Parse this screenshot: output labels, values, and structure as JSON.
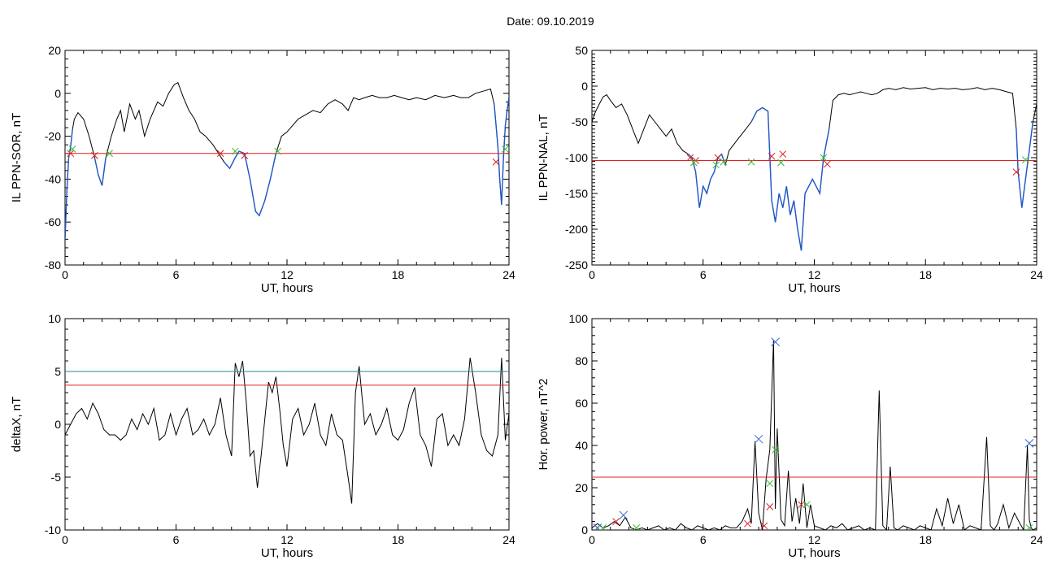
{
  "figure": {
    "date_label": "Date:",
    "date_value": "09.10.2019"
  },
  "colors": {
    "trace": "#000000",
    "substorm": "#1f57c9",
    "threshold": "#e02020",
    "threshold2": "#1a8f8f",
    "onset_marker": "#e02020",
    "end_marker": "#33bb33",
    "power_marker": "#2f6ad8"
  },
  "chart_data": [
    {
      "type": "line",
      "xlabel": "UT, hours",
      "ylabel": "IL PPN-SOR, nT",
      "xlim": [
        0,
        24
      ],
      "ylim": [
        -80,
        20
      ],
      "xticks": [
        0,
        6,
        12,
        18,
        24
      ],
      "yticks": [
        -80,
        -60,
        -40,
        -20,
        0,
        20
      ],
      "yminor": 5,
      "grid": false,
      "threshold": -28,
      "x": [
        0,
        0.1,
        0.2,
        0.3,
        0.4,
        0.5,
        0.7,
        1.0,
        1.3,
        1.6,
        1.8,
        2.0,
        2.2,
        2.5,
        2.8,
        3.0,
        3.2,
        3.5,
        3.8,
        4.0,
        4.3,
        4.6,
        5.0,
        5.3,
        5.6,
        5.9,
        6.1,
        6.4,
        6.7,
        7.0,
        7.3,
        7.6,
        8.0,
        8.3,
        8.6,
        8.9,
        9.2,
        9.4,
        9.7,
        10.0,
        10.3,
        10.5,
        10.8,
        11.1,
        11.4,
        11.7,
        12.0,
        12.3,
        12.6,
        13.0,
        13.4,
        13.8,
        14.2,
        14.6,
        15.0,
        15.3,
        15.6,
        15.9,
        16.2,
        16.6,
        17.0,
        17.4,
        17.8,
        18.2,
        18.6,
        19.0,
        19.5,
        20.0,
        20.5,
        21.0,
        21.4,
        21.8,
        22.2,
        22.6,
        23.0,
        23.2,
        23.4,
        23.5,
        23.6,
        23.7,
        23.8,
        23.9,
        24.0
      ],
      "y": [
        -68,
        -45,
        -30,
        -25,
        -17,
        -12,
        -9,
        -12,
        -20,
        -30,
        -38,
        -43,
        -30,
        -20,
        -12,
        -8,
        -18,
        -5,
        -12,
        -8,
        -20,
        -12,
        -4,
        -6,
        0,
        4,
        5,
        -2,
        -8,
        -12,
        -18,
        -20,
        -24,
        -28,
        -32,
        -35,
        -30,
        -27,
        -28,
        -40,
        -55,
        -57,
        -50,
        -40,
        -28,
        -20,
        -18,
        -15,
        -12,
        -10,
        -8,
        -9,
        -5,
        -3,
        -5,
        -8,
        -2,
        -3,
        -2,
        -1,
        -2,
        -2,
        -1,
        -2,
        -3,
        -2,
        -3,
        -1,
        -2,
        -1,
        -2,
        -2,
        0,
        1,
        2,
        -5,
        -25,
        -40,
        -52,
        -30,
        -15,
        -8,
        -2
      ],
      "substorm_intervals": [
        [
          0.0,
          0.4
        ],
        [
          1.5,
          2.4
        ],
        [
          8.4,
          11.5
        ],
        [
          23.2,
          24.0
        ]
      ],
      "onset_markers": {
        "x": [
          0.3,
          1.6,
          8.4,
          9.7,
          23.3
        ],
        "y": [
          -28,
          -29,
          -28,
          -29,
          -32
        ]
      },
      "end_markers": {
        "x": [
          0.4,
          2.4,
          9.2,
          11.5,
          23.8
        ],
        "y": [
          -26,
          -28,
          -27,
          -27,
          -26
        ]
      }
    },
    {
      "type": "line",
      "xlabel": "UT, hours",
      "ylabel": "IL PPN-NAL, nT",
      "xlim": [
        0,
        24
      ],
      "ylim": [
        -250,
        50
      ],
      "xticks": [
        0,
        6,
        12,
        18,
        24
      ],
      "yticks": [
        -250,
        -200,
        -150,
        -100,
        -50,
        0,
        50
      ],
      "yminor": 10,
      "grid": false,
      "threshold": -104,
      "x": [
        0,
        0.2,
        0.4,
        0.6,
        0.8,
        1.0,
        1.3,
        1.6,
        1.9,
        2.2,
        2.5,
        2.8,
        3.1,
        3.4,
        3.7,
        4.0,
        4.3,
        4.6,
        4.9,
        5.2,
        5.4,
        5.6,
        5.8,
        6.0,
        6.2,
        6.4,
        6.6,
        6.8,
        7.0,
        7.2,
        7.4,
        7.7,
        8.0,
        8.3,
        8.6,
        8.9,
        9.2,
        9.5,
        9.7,
        9.9,
        10.1,
        10.3,
        10.5,
        10.7,
        10.9,
        11.1,
        11.3,
        11.5,
        11.7,
        11.9,
        12.1,
        12.3,
        12.5,
        12.8,
        13.0,
        13.3,
        13.6,
        13.9,
        14.2,
        14.5,
        14.8,
        15.1,
        15.4,
        15.7,
        16.0,
        16.4,
        16.8,
        17.2,
        17.6,
        18.0,
        18.4,
        18.8,
        19.2,
        19.6,
        20.0,
        20.4,
        20.8,
        21.2,
        21.6,
        22.0,
        22.4,
        22.7,
        22.9,
        23.0,
        23.2,
        23.4,
        23.6,
        23.8,
        24.0
      ],
      "y": [
        -50,
        -35,
        -25,
        -15,
        -12,
        -20,
        -30,
        -25,
        -40,
        -60,
        -80,
        -60,
        -40,
        -50,
        -60,
        -70,
        -60,
        -80,
        -90,
        -95,
        -100,
        -120,
        -170,
        -140,
        -150,
        -130,
        -120,
        -100,
        -95,
        -110,
        -90,
        -80,
        -70,
        -60,
        -50,
        -35,
        -30,
        -35,
        -160,
        -190,
        -150,
        -170,
        -140,
        -180,
        -160,
        -200,
        -230,
        -150,
        -140,
        -130,
        -140,
        -150,
        -100,
        -60,
        -20,
        -12,
        -10,
        -12,
        -10,
        -8,
        -10,
        -12,
        -10,
        -5,
        -3,
        -5,
        -2,
        -4,
        -3,
        -2,
        -5,
        -3,
        -4,
        -3,
        -5,
        -4,
        -2,
        -5,
        -3,
        -5,
        -8,
        -10,
        -60,
        -120,
        -170,
        -130,
        -90,
        -50,
        -25
      ],
      "substorm_intervals": [
        [
          5.2,
          7.3
        ],
        [
          8.6,
          10.3
        ],
        [
          10.3,
          12.8
        ],
        [
          22.9,
          23.8
        ]
      ],
      "onset_markers": {
        "x": [
          5.3,
          5.6,
          6.8,
          9.7,
          10.3,
          12.7,
          22.9
        ],
        "y": [
          -100,
          -104,
          -100,
          -98,
          -95,
          -109,
          -120
        ]
      },
      "end_markers": {
        "x": [
          5.5,
          6.7,
          7.1,
          8.6,
          10.2,
          12.5,
          23.4
        ],
        "y": [
          -107,
          -110,
          -106,
          -106,
          -107,
          -100,
          -103
        ]
      }
    },
    {
      "type": "line",
      "xlabel": "UT, hours",
      "ylabel": "deltaX, nT",
      "xlim": [
        0,
        24
      ],
      "ylim": [
        -10,
        10
      ],
      "xticks": [
        0,
        6,
        12,
        18,
        24
      ],
      "yticks": [
        -10,
        -5,
        0,
        5,
        10
      ],
      "yminor": 5,
      "grid": false,
      "threshold": 3.7,
      "threshold2": 5,
      "x": [
        0,
        0.3,
        0.6,
        0.9,
        1.2,
        1.5,
        1.8,
        2.1,
        2.4,
        2.7,
        3.0,
        3.3,
        3.6,
        3.9,
        4.2,
        4.5,
        4.8,
        5.1,
        5.4,
        5.7,
        6.0,
        6.3,
        6.6,
        6.9,
        7.2,
        7.5,
        7.8,
        8.1,
        8.4,
        8.7,
        9.0,
        9.2,
        9.4,
        9.6,
        9.8,
        10.0,
        10.2,
        10.4,
        10.6,
        10.8,
        11.0,
        11.2,
        11.4,
        11.6,
        11.8,
        12.0,
        12.3,
        12.6,
        12.9,
        13.2,
        13.5,
        13.8,
        14.1,
        14.4,
        14.7,
        15.0,
        15.3,
        15.5,
        15.7,
        15.9,
        16.2,
        16.5,
        16.8,
        17.1,
        17.4,
        17.7,
        18.0,
        18.3,
        18.6,
        18.9,
        19.2,
        19.5,
        19.8,
        20.1,
        20.4,
        20.7,
        21.0,
        21.3,
        21.6,
        21.9,
        22.2,
        22.5,
        22.8,
        23.1,
        23.4,
        23.6,
        23.8,
        24.0
      ],
      "y": [
        -1,
        0,
        1,
        1.5,
        0.5,
        2,
        1,
        -0.5,
        -1,
        -1,
        -1.5,
        -1,
        0.5,
        -0.5,
        1,
        0,
        1.5,
        -1.5,
        -1,
        1,
        -1,
        0.5,
        1.5,
        -1,
        -0.5,
        0.5,
        -1,
        0,
        2.5,
        -1,
        -3,
        5.8,
        4.5,
        6,
        2,
        -3,
        -2.5,
        -6,
        -3,
        0.5,
        4,
        3,
        4.5,
        1.5,
        -2,
        -4,
        0.5,
        1.5,
        -1,
        0,
        2,
        -1,
        -2,
        1,
        -1,
        -1.5,
        -5,
        -7.5,
        3,
        5.5,
        0,
        1,
        -1,
        0,
        1.5,
        -1,
        -1.5,
        -0.5,
        2,
        3.5,
        -1,
        -2,
        -4,
        0.5,
        1,
        -2,
        -1,
        -2,
        0.5,
        6.3,
        3,
        -1,
        -2.5,
        -3,
        -1,
        6.3,
        -1.5,
        1
      ],
      "substorm_intervals": [],
      "onset_markers": {
        "x": [],
        "y": []
      },
      "end_markers": {
        "x": [],
        "y": []
      }
    },
    {
      "type": "line",
      "xlabel": "UT, hours",
      "ylabel": "Hor. power, nT^2",
      "xlim": [
        0,
        24
      ],
      "ylim": [
        0,
        100
      ],
      "xticks": [
        0,
        6,
        12,
        18,
        24
      ],
      "yticks": [
        0,
        20,
        40,
        60,
        80,
        100
      ],
      "yminor": 5,
      "grid": false,
      "threshold": 25,
      "x": [
        0,
        0.3,
        0.6,
        0.9,
        1.2,
        1.5,
        1.8,
        2.1,
        2.4,
        2.7,
        3.0,
        3.3,
        3.6,
        3.9,
        4.2,
        4.5,
        4.8,
        5.1,
        5.4,
        5.7,
        6.0,
        6.3,
        6.6,
        6.9,
        7.2,
        7.5,
        7.8,
        8.1,
        8.4,
        8.6,
        8.8,
        9.0,
        9.2,
        9.4,
        9.6,
        9.8,
        9.9,
        10.0,
        10.2,
        10.4,
        10.6,
        10.8,
        11.0,
        11.2,
        11.4,
        11.6,
        11.8,
        12.0,
        12.3,
        12.6,
        12.9,
        13.2,
        13.5,
        13.8,
        14.1,
        14.4,
        14.7,
        15.0,
        15.3,
        15.5,
        15.7,
        15.9,
        16.1,
        16.3,
        16.5,
        16.8,
        17.1,
        17.4,
        17.7,
        18.0,
        18.3,
        18.6,
        18.9,
        19.2,
        19.5,
        19.8,
        20.1,
        20.4,
        20.7,
        21.0,
        21.3,
        21.5,
        21.7,
        21.9,
        22.2,
        22.5,
        22.8,
        23.1,
        23.3,
        23.5,
        23.6,
        23.7,
        23.8,
        24.0
      ],
      "y": [
        1,
        3,
        1,
        2,
        4,
        2,
        6,
        1,
        0,
        1,
        0,
        1,
        2,
        0,
        1,
        0,
        3,
        1,
        0,
        2,
        1,
        0,
        1,
        0,
        2,
        1,
        1,
        4,
        10,
        3,
        42,
        8,
        0,
        24,
        38,
        90,
        10,
        48,
        5,
        2,
        28,
        4,
        15,
        3,
        22,
        1,
        12,
        2,
        1,
        0,
        2,
        1,
        3,
        0,
        1,
        2,
        0,
        1,
        0,
        66,
        2,
        0,
        30,
        1,
        0,
        2,
        1,
        0,
        2,
        1,
        0,
        10,
        2,
        15,
        3,
        12,
        0,
        2,
        1,
        0,
        44,
        2,
        0,
        3,
        12,
        1,
        8,
        3,
        0,
        40,
        5,
        1,
        0,
        1
      ],
      "substorm_intervals": [],
      "onset_markers": {
        "x": [
          0.3,
          1.3,
          8.4,
          9.3,
          9.6,
          11.3
        ],
        "y": [
          1,
          4,
          3,
          2,
          11,
          12
        ]
      },
      "end_markers": {
        "x": [
          0.6,
          2.4,
          9.6,
          9.9,
          11.6,
          23.6
        ],
        "y": [
          1,
          1,
          22,
          38,
          12,
          1
        ]
      },
      "power_markers": {
        "x": [
          0.3,
          1.7,
          9.0,
          9.9,
          23.6
        ],
        "y": [
          1,
          7,
          43,
          89,
          41
        ]
      }
    }
  ]
}
